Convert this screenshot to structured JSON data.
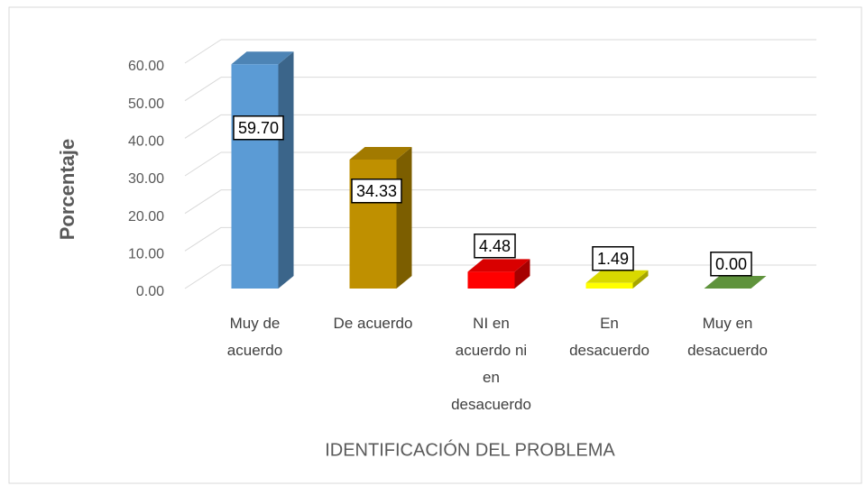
{
  "chart_data": {
    "type": "bar3d",
    "y_label": "Porcentaje",
    "x_label": "IDENTIFICACIÓN DEL PROBLEMA",
    "categories": [
      "Muy de acuerdo",
      "De acuerdo",
      "NI en acuerdo ni en desacuerdo",
      "En desacuerdo",
      "Muy en desacuerdo"
    ],
    "values": [
      59.7,
      34.33,
      4.48,
      1.49,
      0
    ],
    "value_labels": [
      "59.70",
      "34.33",
      "4.48",
      "1.49",
      "0.00"
    ],
    "colors": [
      "#5b9bd5",
      "#bf9000",
      "#ff0000",
      "#ffff00",
      "#70ad47"
    ],
    "ylim": [
      0,
      60
    ],
    "yticks": [
      {
        "value": 0,
        "label": "0.00"
      },
      {
        "value": 10,
        "label": "10.00"
      },
      {
        "value": 20,
        "label": "20.00"
      },
      {
        "value": 30,
        "label": "30.00"
      },
      {
        "value": 40,
        "label": "40.00"
      },
      {
        "value": 50,
        "label": "50.00"
      },
      {
        "value": 60,
        "label": "60.00"
      }
    ],
    "grid": true
  }
}
